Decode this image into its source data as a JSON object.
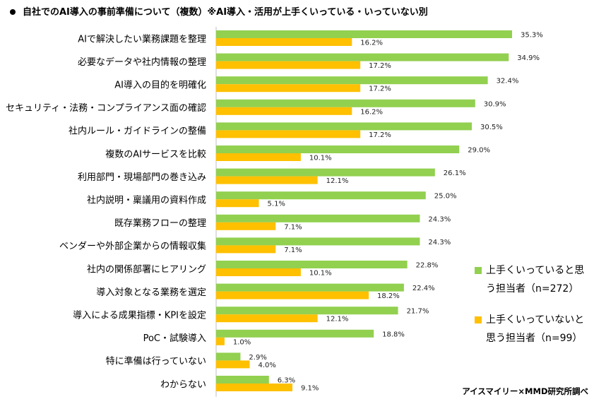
{
  "title": "自社でのAI導入の事前準備について（複数）※AI導入・活用が上手くいっている・いっていない別",
  "source": "アイスマイリー×MMD研究所調べ",
  "colors": {
    "series1": "#92d050",
    "series2": "#ffc000",
    "axis": "#bfbfbf"
  },
  "legend": {
    "series1": "上手くいっていると思う担当者（n=272）",
    "series2": "上手くいっていないと思う担当者（n=99）"
  },
  "chart_data": {
    "type": "bar",
    "orientation": "horizontal",
    "title": "自社でのAI導入の事前準備について（複数）※AI導入・活用が上手くいっている・いっていない別",
    "categories": [
      "AIで解決したい業務課題を整理",
      "必要なデータや社内情報の整理",
      "AI導入の目的を明確化",
      "セキュリティ・法務・コンプライアンス面の確認",
      "社内ルール・ガイドラインの整備",
      "複数のAIサービスを比較",
      "利用部門・現場部門の巻き込み",
      "社内説明・稟議用の資料作成",
      "既存業務フローの整理",
      "ベンダーや外部企業からの情報収集",
      "社内の関係部署にヒアリング",
      "導入対象となる業務を選定",
      "導入による成果指標・KPIを設定",
      "PoC・試験導入",
      "特に準備は行っていない",
      "わからない"
    ],
    "series": [
      {
        "name": "上手くいっていると思う担当者（n=272）",
        "values": [
          35.3,
          34.9,
          32.4,
          30.9,
          30.5,
          29.0,
          26.1,
          25.0,
          24.3,
          24.3,
          22.8,
          22.4,
          21.7,
          18.8,
          2.9,
          6.3
        ]
      },
      {
        "name": "上手くいっていないと思う担当者（n=99）",
        "values": [
          16.2,
          17.2,
          17.2,
          16.2,
          17.2,
          10.1,
          12.1,
          5.1,
          7.1,
          7.1,
          10.1,
          18.2,
          12.1,
          1.0,
          4.0,
          9.1
        ]
      }
    ],
    "value_suffix": "%",
    "xlim": [
      0,
      40
    ],
    "grid": false,
    "legend_position": "right"
  }
}
